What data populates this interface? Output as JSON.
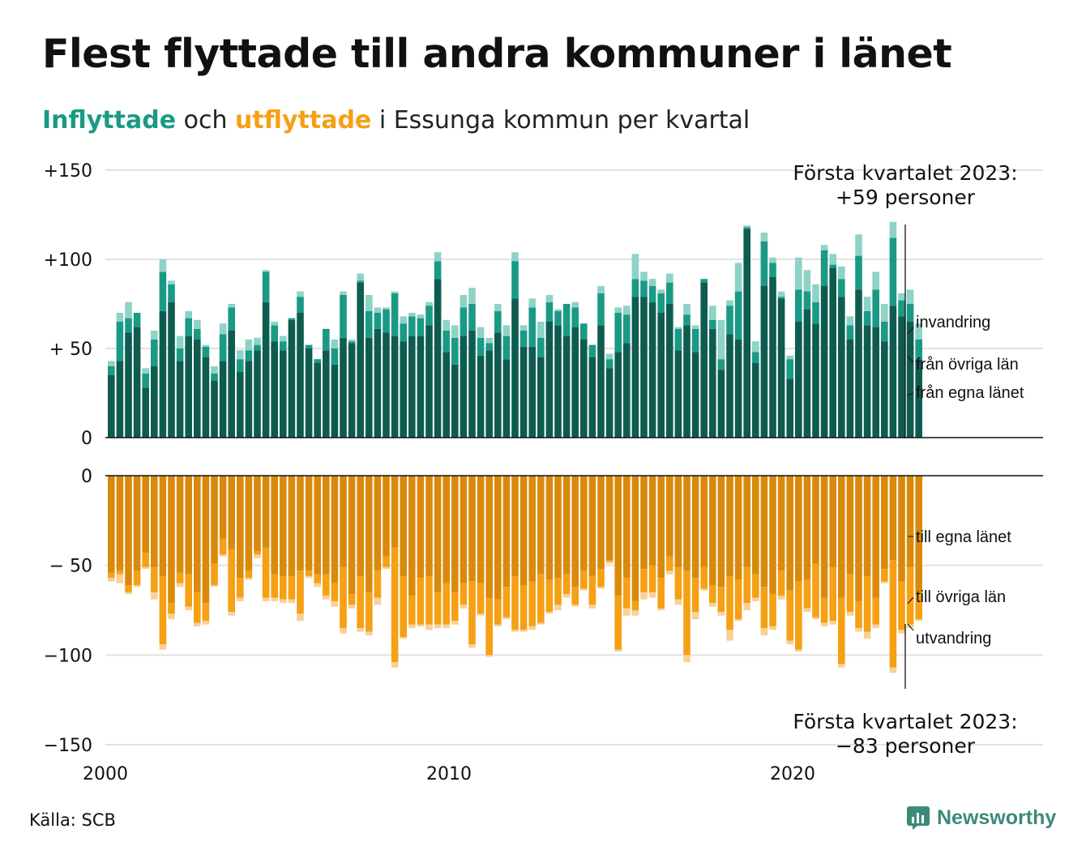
{
  "title": "Flest flyttade till andra kommuner i länet",
  "subtitle": {
    "in_word": "Inflyttade",
    "and_word": "och",
    "out_word": "utflyttade",
    "rest": "i Essunga kommun per kvartal"
  },
  "source": "Källa: SCB",
  "logo_text": "Newsworthy",
  "colors": {
    "in_egna": "#0e5c50",
    "in_ovriga": "#1a9a86",
    "in_invandring": "#8dd3c6",
    "out_egna": "#d98a0c",
    "out_ovriga": "#f5a015",
    "out_utvandring": "#f8d196",
    "grid": "#e2e2e2",
    "logo": "#3c8a7a"
  },
  "chart_data": {
    "type": "bar",
    "stacked": true,
    "x_ticks": [
      "2000",
      "2010",
      "2020"
    ],
    "xlim": [
      2000,
      2027.5
    ],
    "grid": true,
    "panels": [
      {
        "name": "inflyttade",
        "ylim": [
          0,
          150
        ],
        "y_ticks": [
          "+150",
          "+100",
          "+ 50",
          "0"
        ],
        "series": [
          {
            "name": "från egna länet",
            "values": [
              35,
              43,
              59,
              62,
              28,
              40,
              71,
              76,
              43,
              57,
              55,
              45,
              32,
              43,
              60,
              37,
              43,
              49,
              76,
              54,
              49,
              66,
              70,
              50,
              42,
              49,
              41,
              56,
              53,
              87,
              56,
              61,
              59,
              57,
              54,
              57,
              57,
              63,
              89,
              48,
              41,
              57,
              60,
              46,
              49,
              59,
              44,
              78,
              51,
              51,
              45,
              65,
              63,
              57,
              62,
              55,
              45,
              63,
              39,
              48,
              53,
              79,
              79,
              76,
              70,
              75,
              49,
              63,
              48,
              87,
              61,
              38,
              58,
              55,
              117,
              42,
              85,
              90,
              78,
              33,
              65,
              72,
              64,
              85,
              95,
              79,
              55,
              83,
              63,
              62,
              54,
              74,
              68,
              65,
              44
            ],
            "note": "dark teal component"
          },
          {
            "name": "från övriga län",
            "values": [
              5,
              22,
              8,
              8,
              8,
              15,
              22,
              10,
              7,
              10,
              6,
              6,
              4,
              15,
              13,
              7,
              6,
              3,
              17,
              9,
              5,
              1,
              9,
              2,
              2,
              12,
              9,
              24,
              1,
              1,
              15,
              9,
              13,
              24,
              10,
              11,
              10,
              11,
              10,
              12,
              15,
              16,
              15,
              10,
              4,
              12,
              13,
              21,
              9,
              22,
              11,
              11,
              8,
              18,
              11,
              9,
              7,
              18,
              5,
              22,
              16,
              10,
              9,
              9,
              11,
              12,
              12,
              6,
              13,
              2,
              5,
              6,
              16,
              27,
              1,
              6,
              25,
              8,
              1,
              11,
              18,
              10,
              12,
              20,
              2,
              10,
              8,
              19,
              8,
              21,
              11,
              38,
              9,
              10,
              11
            ],
            "note": "medium teal component"
          },
          {
            "name": "invandring",
            "values": [
              3,
              5,
              9,
              0,
              3,
              5,
              7,
              2,
              7,
              4,
              5,
              1,
              4,
              6,
              2,
              5,
              6,
              4,
              1,
              2,
              3,
              0,
              3,
              0,
              0,
              0,
              5,
              2,
              1,
              4,
              9,
              3,
              1,
              1,
              4,
              2,
              2,
              2,
              5,
              6,
              7,
              7,
              9,
              6,
              3,
              4,
              6,
              5,
              3,
              5,
              9,
              4,
              1,
              0,
              3,
              0,
              0,
              4,
              3,
              3,
              5,
              14,
              5,
              4,
              2,
              5,
              1,
              6,
              2,
              0,
              8,
              22,
              3,
              16,
              1,
              6,
              5,
              3,
              3,
              2,
              18,
              12,
              10,
              3,
              6,
              7,
              5,
              12,
              8,
              10,
              10,
              9,
              4,
              8,
              9
            ],
            "note": "light teal component"
          }
        ]
      },
      {
        "name": "utflyttade",
        "ylim": [
          -150,
          0
        ],
        "y_ticks": [
          "0",
          "− 50",
          "−100",
          "−150"
        ],
        "series": [
          {
            "name": "till egna länet",
            "values": [
              -54,
              -53,
              -61,
              -53,
              -43,
              -51,
              -56,
              -71,
              -54,
              -55,
              -65,
              -71,
              -49,
              -35,
              -41,
              -57,
              -53,
              -42,
              -40,
              -55,
              -56,
              -56,
              -53,
              -53,
              -55,
              -55,
              -60,
              -51,
              -66,
              -56,
              -65,
              -53,
              -45,
              -40,
              -56,
              -67,
              -57,
              -56,
              -65,
              -60,
              -65,
              -60,
              -59,
              -60,
              -68,
              -69,
              -62,
              -56,
              -61,
              -59,
              -55,
              -58,
              -57,
              -55,
              -62,
              -53,
              -56,
              -52,
              -47,
              -67,
              -57,
              -70,
              -52,
              -50,
              -57,
              -45,
              -51,
              -53,
              -57,
              -51,
              -61,
              -62,
              -56,
              -58,
              -51,
              -55,
              -62,
              -66,
              -53,
              -64,
              -59,
              -58,
              -49,
              -68,
              -51,
              -68,
              -55,
              -70,
              -56,
              -68,
              -52,
              -47,
              -59,
              -51,
              -66
            ],
            "note": "dark orange component"
          },
          {
            "name": "till övriga län",
            "values": [
              -3,
              -2,
              -4,
              -8,
              -8,
              -14,
              -38,
              -6,
              -6,
              -18,
              -17,
              -10,
              -12,
              -9,
              -35,
              -11,
              -4,
              -2,
              -28,
              -13,
              -13,
              -13,
              -24,
              -3,
              -5,
              -12,
              -10,
              -34,
              -6,
              -29,
              -22,
              -15,
              -6,
              -64,
              -34,
              -16,
              -26,
              -27,
              -18,
              -23,
              -16,
              -12,
              -35,
              -17,
              -32,
              -14,
              -17,
              -30,
              -25,
              -25,
              -27,
              -18,
              -15,
              -11,
              -10,
              -10,
              -16,
              -10,
              -1,
              -30,
              -17,
              -5,
              -13,
              -15,
              -17,
              -8,
              -18,
              -47,
              -19,
              -12,
              -10,
              -14,
              -30,
              -22,
              -20,
              -13,
              -23,
              -18,
              -14,
              -28,
              -38,
              -16,
              -30,
              -14,
              -30,
              -37,
              -21,
              -15,
              -31,
              -15,
              -7,
              -60,
              -27,
              -32,
              -14
            ],
            "note": "medium orange component"
          },
          {
            "name": "utvandring",
            "values": [
              -2,
              -5,
              -1,
              -1,
              -1,
              -4,
              -3,
              -3,
              -2,
              -2,
              -2,
              -2,
              -1,
              -1,
              -2,
              -2,
              -1,
              -2,
              -2,
              -2,
              -2,
              -2,
              -4,
              -1,
              -2,
              -2,
              -3,
              -3,
              -2,
              -2,
              -2,
              -4,
              -1,
              -3,
              -1,
              -2,
              -1,
              -3,
              -2,
              -2,
              -2,
              -2,
              -2,
              -1,
              -1,
              -1,
              -1,
              -1,
              -1,
              -2,
              -1,
              -1,
              -3,
              -2,
              -1,
              -1,
              -2,
              -1,
              -1,
              -1,
              -4,
              -3,
              -4,
              -3,
              -1,
              -2,
              -3,
              -4,
              -4,
              -1,
              -2,
              -2,
              -6,
              -1,
              -4,
              -2,
              -4,
              -2,
              -2,
              -2,
              -1,
              -2,
              -1,
              -2,
              -2,
              -2,
              -2,
              -2,
              -4,
              -2,
              -1,
              -3,
              -2,
              -2,
              -1
            ],
            "note": "light orange component"
          }
        ]
      }
    ],
    "annotations": {
      "top_label_line1": "Första kvartalet 2023:",
      "top_label_line2": "+59 personer",
      "bottom_label_line1": "Första kvartalet 2023:",
      "bottom_label_line2": "−83 personer",
      "label_invandring": "invandring",
      "label_fran_ovriga": "från övriga län",
      "label_fran_egna": "från egna länet",
      "label_till_egna": "till egna länet",
      "label_till_ovriga": "till övriga län",
      "label_utvandring": "utvandring"
    }
  }
}
